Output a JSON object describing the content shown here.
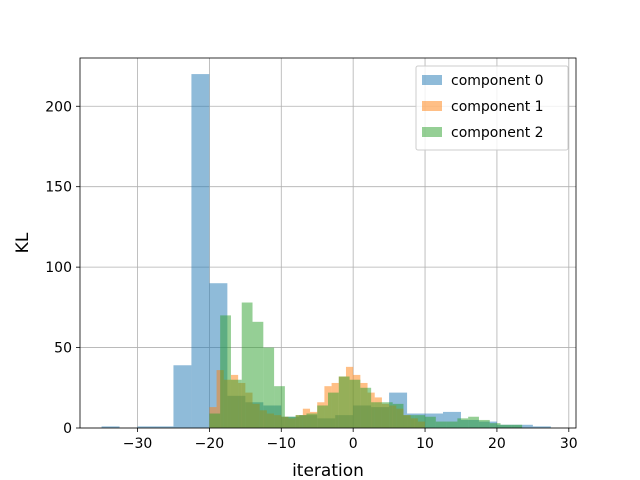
{
  "chart_data": {
    "type": "histogram",
    "title": "",
    "xlabel": "iteration",
    "ylabel": "KL",
    "xlim": [
      -38,
      31
    ],
    "ylim": [
      0,
      230
    ],
    "xticks": [
      -30,
      -20,
      -10,
      0,
      10,
      20,
      30
    ],
    "xtick_labels": [
      "−30",
      "−20",
      "−10",
      "0",
      "10",
      "20",
      "30"
    ],
    "yticks": [
      0,
      50,
      100,
      150,
      200
    ],
    "ytick_labels": [
      "0",
      "50",
      "100",
      "150",
      "200"
    ],
    "grid": true,
    "legend_position": "top-right",
    "series": [
      {
        "name": "component 0",
        "color": "#1f77b4",
        "opacity": 0.5,
        "bins": [
          [
            -35.0,
            -32.5,
            1
          ],
          [
            -30.0,
            -27.5,
            1
          ],
          [
            -27.5,
            -25.0,
            1
          ],
          [
            -25.0,
            -22.5,
            39
          ],
          [
            -22.5,
            -20.0,
            220
          ],
          [
            -20.0,
            -17.5,
            90
          ],
          [
            -17.5,
            -15.0,
            20
          ],
          [
            -15.0,
            -12.5,
            16
          ],
          [
            -12.5,
            -10.0,
            14
          ],
          [
            -10.0,
            -7.5,
            7
          ],
          [
            -7.5,
            -5.0,
            8
          ],
          [
            -5.0,
            -2.5,
            6
          ],
          [
            -2.5,
            0.0,
            8
          ],
          [
            0.0,
            2.5,
            14
          ],
          [
            2.5,
            5.0,
            13
          ],
          [
            5.0,
            7.5,
            22
          ],
          [
            7.5,
            10.0,
            9
          ],
          [
            10.0,
            12.5,
            9
          ],
          [
            12.5,
            15.0,
            10
          ],
          [
            15.0,
            17.5,
            5
          ],
          [
            17.5,
            20.0,
            4
          ],
          [
            20.0,
            22.5,
            2
          ],
          [
            22.5,
            25.0,
            2
          ],
          [
            25.0,
            27.5,
            1
          ]
        ]
      },
      {
        "name": "component 1",
        "color": "#ff7f0e",
        "opacity": 0.5,
        "bins": [
          [
            -20.0,
            -19.0,
            13
          ],
          [
            -19.0,
            -18.0,
            36
          ],
          [
            -18.0,
            -17.0,
            30
          ],
          [
            -17.0,
            -16.0,
            33
          ],
          [
            -16.0,
            -15.0,
            28
          ],
          [
            -15.0,
            -14.0,
            22
          ],
          [
            -14.0,
            -13.0,
            15
          ],
          [
            -13.0,
            -12.0,
            11
          ],
          [
            -12.0,
            -11.0,
            9
          ],
          [
            -11.0,
            -10.0,
            8
          ],
          [
            -10.0,
            -9.0,
            7
          ],
          [
            -9.0,
            -8.0,
            6
          ],
          [
            -8.0,
            -7.0,
            8
          ],
          [
            -7.0,
            -6.0,
            12
          ],
          [
            -6.0,
            -5.0,
            10
          ],
          [
            -5.0,
            -4.0,
            16
          ],
          [
            -4.0,
            -3.0,
            26
          ],
          [
            -3.0,
            -2.0,
            28
          ],
          [
            -2.0,
            -1.0,
            32
          ],
          [
            -1.0,
            0.0,
            38
          ],
          [
            0.0,
            1.0,
            33
          ],
          [
            1.0,
            2.0,
            28
          ],
          [
            2.0,
            3.0,
            22
          ],
          [
            3.0,
            4.0,
            19
          ],
          [
            4.0,
            5.0,
            15
          ],
          [
            5.0,
            6.0,
            14
          ],
          [
            6.0,
            7.0,
            12
          ],
          [
            7.0,
            8.0,
            8
          ],
          [
            8.0,
            9.0,
            6
          ],
          [
            9.0,
            10.0,
            4
          ]
        ]
      },
      {
        "name": "component 2",
        "color": "#2ca02c",
        "opacity": 0.5,
        "bins": [
          [
            -20.0,
            -18.5,
            9
          ],
          [
            -18.5,
            -17.0,
            70
          ],
          [
            -17.0,
            -15.5,
            30
          ],
          [
            -15.5,
            -14.0,
            78
          ],
          [
            -14.0,
            -12.5,
            66
          ],
          [
            -12.5,
            -11.0,
            50
          ],
          [
            -11.0,
            -9.5,
            26
          ],
          [
            -9.5,
            -8.0,
            7
          ],
          [
            -8.0,
            -6.5,
            8
          ],
          [
            -6.5,
            -5.0,
            9
          ],
          [
            -5.0,
            -3.5,
            14
          ],
          [
            -3.5,
            -2.0,
            22
          ],
          [
            -2.0,
            -0.5,
            32
          ],
          [
            -0.5,
            1.0,
            30
          ],
          [
            1.0,
            2.5,
            25
          ],
          [
            2.5,
            4.0,
            16
          ],
          [
            4.0,
            5.5,
            16
          ],
          [
            5.5,
            7.0,
            15
          ],
          [
            7.0,
            8.5,
            8
          ],
          [
            8.5,
            10.0,
            8
          ],
          [
            10.0,
            11.5,
            7
          ],
          [
            11.5,
            13.0,
            4
          ],
          [
            13.0,
            14.5,
            4
          ],
          [
            14.5,
            16.0,
            6
          ],
          [
            16.0,
            17.5,
            7
          ],
          [
            17.5,
            19.0,
            5
          ],
          [
            19.0,
            20.5,
            3
          ],
          [
            20.5,
            22.0,
            2
          ],
          [
            22.0,
            23.5,
            2
          ]
        ]
      }
    ]
  }
}
